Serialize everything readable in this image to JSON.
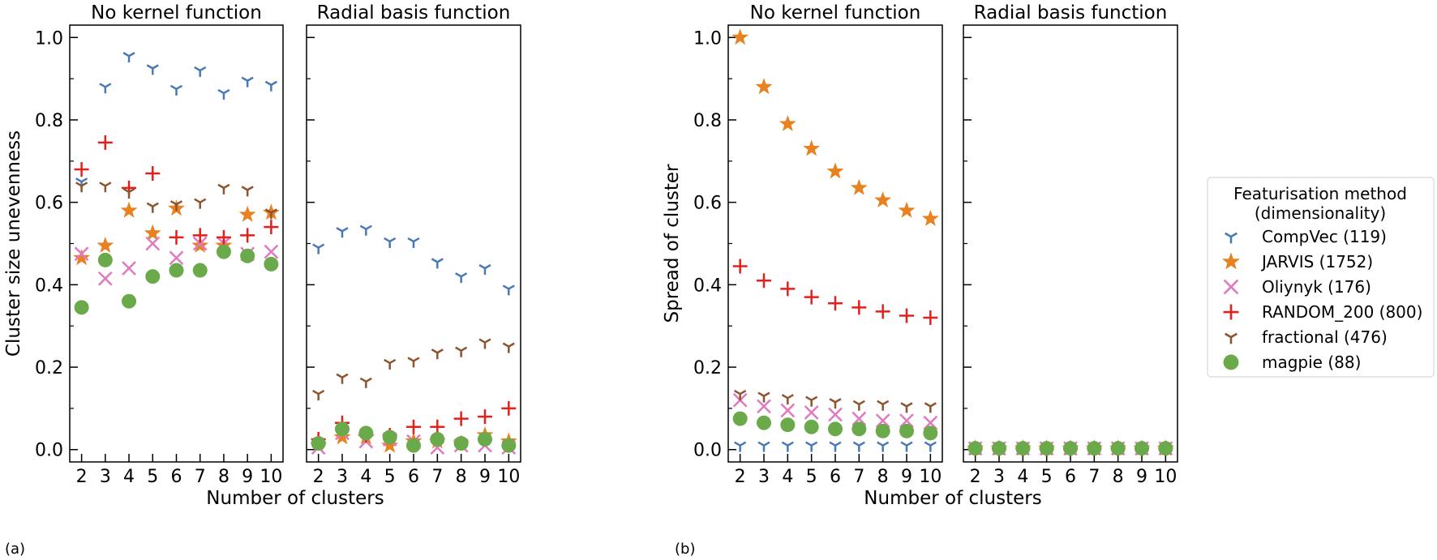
{
  "chart_data": [
    {
      "type": "scatter",
      "panel_label": "(a)",
      "ylabel": "Cluster size unevenness",
      "xlabel": "Number of clusters",
      "ylim": [
        -0.03,
        1.03
      ],
      "xlim": [
        1.5,
        10.5
      ],
      "yticks": [
        "0.0",
        "0.2",
        "0.4",
        "0.6",
        "0.8",
        "1.0"
      ],
      "x": [
        2,
        3,
        4,
        5,
        6,
        7,
        8,
        9,
        10
      ],
      "subplots": [
        {
          "title": "No kernel function",
          "series": [
            {
              "name": "CompVec (119)",
              "values": [
                0.65,
                0.88,
                0.955,
                0.925,
                0.875,
                0.92,
                0.865,
                0.895,
                0.885
              ]
            },
            {
              "name": "JARVIS (1752)",
              "values": [
                0.465,
                0.495,
                0.58,
                0.525,
                0.585,
                0.495,
                0.495,
                0.57,
                0.575
              ]
            },
            {
              "name": "Oliynyk (176)",
              "values": [
                0.475,
                0.415,
                0.44,
                0.5,
                0.465,
                0.5,
                0.5,
                0.475,
                0.48
              ]
            },
            {
              "name": "RANDOM_200 (800)",
              "values": [
                0.68,
                0.745,
                0.635,
                0.67,
                0.515,
                0.52,
                0.515,
                0.52,
                0.54
              ]
            },
            {
              "name": "fractional (476)",
              "values": [
                0.64,
                0.64,
                0.625,
                0.59,
                0.595,
                0.6,
                0.635,
                0.63,
                0.575
              ]
            },
            {
              "name": "magpie (88)",
              "values": [
                0.345,
                0.46,
                0.36,
                0.42,
                0.435,
                0.435,
                0.48,
                0.47,
                0.45
              ]
            }
          ]
        },
        {
          "title": "Radial basis function",
          "series": [
            {
              "name": "CompVec (119)",
              "values": [
                0.49,
                0.53,
                0.535,
                0.505,
                0.505,
                0.455,
                0.42,
                0.44,
                0.39
              ]
            },
            {
              "name": "JARVIS (1752)",
              "values": [
                0.01,
                0.03,
                0.03,
                0.01,
                0.02,
                0.02,
                0.015,
                0.035,
                0.02
              ]
            },
            {
              "name": "Oliynyk (176)",
              "values": [
                0.005,
                0.04,
                0.02,
                0.025,
                0.02,
                0.005,
                0.01,
                0.01,
                0.005
              ]
            },
            {
              "name": "RANDOM_200 (800)",
              "values": [
                0.025,
                0.065,
                0.035,
                0.035,
                0.055,
                0.055,
                0.075,
                0.08,
                0.1
              ]
            },
            {
              "name": "fractional (476)",
              "values": [
                0.135,
                0.175,
                0.165,
                0.21,
                0.215,
                0.235,
                0.24,
                0.26,
                0.25
              ]
            },
            {
              "name": "magpie (88)",
              "values": [
                0.015,
                0.05,
                0.04,
                0.03,
                0.01,
                0.025,
                0.015,
                0.025,
                0.01
              ]
            }
          ]
        }
      ]
    },
    {
      "type": "scatter",
      "panel_label": "(b)",
      "ylabel": "Spread of cluster",
      "xlabel": "Number of clusters",
      "ylim": [
        -0.03,
        1.03
      ],
      "xlim": [
        1.5,
        10.5
      ],
      "yticks": [
        "0.0",
        "0.2",
        "0.4",
        "0.6",
        "0.8",
        "1.0"
      ],
      "x": [
        2,
        3,
        4,
        5,
        6,
        7,
        8,
        9,
        10
      ],
      "subplots": [
        {
          "title": "No kernel function",
          "series": [
            {
              "name": "CompVec (119)",
              "values": [
                0.01,
                0.01,
                0.01,
                0.01,
                0.01,
                0.01,
                0.01,
                0.01,
                0.01
              ]
            },
            {
              "name": "JARVIS (1752)",
              "values": [
                1.0,
                0.88,
                0.79,
                0.73,
                0.675,
                0.635,
                0.605,
                0.58,
                0.56
              ]
            },
            {
              "name": "Oliynyk (176)",
              "values": [
                0.12,
                0.105,
                0.095,
                0.09,
                0.085,
                0.075,
                0.07,
                0.07,
                0.065
              ]
            },
            {
              "name": "RANDOM_200 (800)",
              "values": [
                0.445,
                0.41,
                0.39,
                0.37,
                0.355,
                0.345,
                0.335,
                0.325,
                0.32
              ]
            },
            {
              "name": "fractional (476)",
              "values": [
                0.135,
                0.13,
                0.125,
                0.12,
                0.115,
                0.11,
                0.11,
                0.105,
                0.105
              ]
            },
            {
              "name": "magpie (88)",
              "values": [
                0.075,
                0.065,
                0.06,
                0.055,
                0.05,
                0.05,
                0.045,
                0.045,
                0.04
              ]
            }
          ]
        },
        {
          "title": "Radial basis function",
          "series": [
            {
              "name": "CompVec (119)",
              "values": [
                0.003,
                0.003,
                0.003,
                0.003,
                0.003,
                0.003,
                0.003,
                0.003,
                0.003
              ]
            },
            {
              "name": "JARVIS (1752)",
              "values": [
                0.003,
                0.003,
                0.003,
                0.003,
                0.003,
                0.003,
                0.003,
                0.003,
                0.003
              ]
            },
            {
              "name": "Oliynyk (176)",
              "values": [
                0.003,
                0.003,
                0.003,
                0.003,
                0.003,
                0.003,
                0.003,
                0.003,
                0.003
              ]
            },
            {
              "name": "RANDOM_200 (800)",
              "values": [
                0.003,
                0.003,
                0.003,
                0.003,
                0.003,
                0.003,
                0.003,
                0.003,
                0.003
              ]
            },
            {
              "name": "fractional (476)",
              "values": [
                0.003,
                0.003,
                0.003,
                0.003,
                0.003,
                0.003,
                0.003,
                0.003,
                0.003
              ]
            },
            {
              "name": "magpie (88)",
              "values": [
                0.003,
                0.003,
                0.003,
                0.003,
                0.003,
                0.003,
                0.003,
                0.003,
                0.003
              ]
            }
          ]
        }
      ]
    }
  ],
  "legend": {
    "title_line1": "Featurisation method",
    "title_line2": "(dimensionality)",
    "placement": "right",
    "entries": [
      {
        "label": "CompVec (119)",
        "marker": "tri-down",
        "color": "#4a7ab5"
      },
      {
        "label": "JARVIS (1752)",
        "marker": "star",
        "color": "#e8811f"
      },
      {
        "label": "Oliynyk (176)",
        "marker": "x",
        "color": "#e07ac0"
      },
      {
        "label": "RANDOM_200 (800)",
        "marker": "plus",
        "color": "#e3201c"
      },
      {
        "label": "fractional (476)",
        "marker": "tri-down",
        "color": "#8c5530"
      },
      {
        "label": "magpie (88)",
        "marker": "circle",
        "color": "#6aaa4b"
      }
    ]
  }
}
